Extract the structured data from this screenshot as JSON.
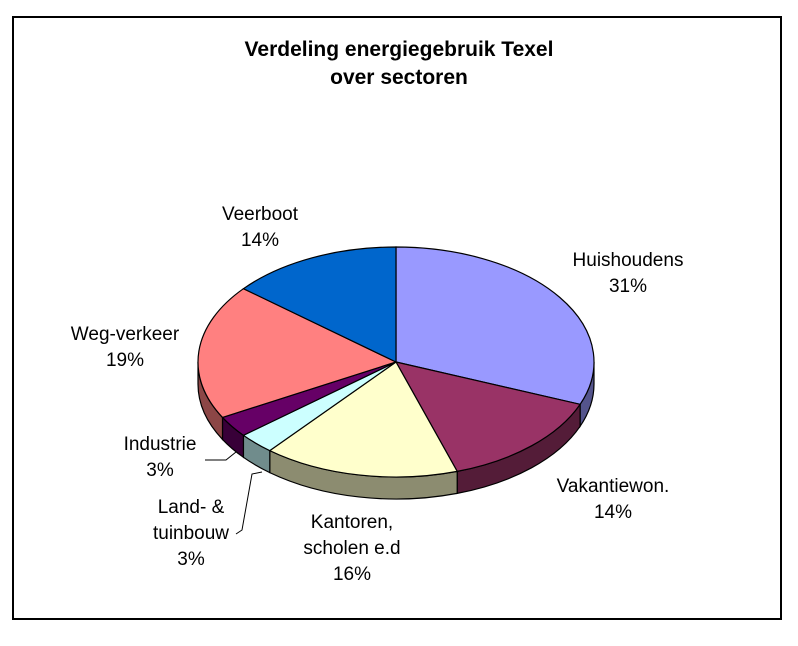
{
  "chart_data": {
    "type": "pie",
    "title": [
      "Verdeling energiegebruik Texel",
      "over sectoren"
    ],
    "slices": [
      {
        "name": "Huishoudens",
        "lines": [
          "Huishoudens"
        ],
        "value": 31,
        "label": "31%",
        "color": "#9999FF"
      },
      {
        "name": "Vakantiewon.",
        "lines": [
          "Vakantiewon."
        ],
        "value": 14,
        "label": "14%",
        "color": "#993366"
      },
      {
        "name": "Kantoren, scholen e.d",
        "lines": [
          "Kantoren,",
          "scholen e.d"
        ],
        "value": 16,
        "label": "16%",
        "color": "#FFFFCC"
      },
      {
        "name": "Land- & tuinbouw",
        "lines": [
          "Land- &",
          "tuinbouw"
        ],
        "value": 3,
        "label": "3%",
        "color": "#CCFFFF"
      },
      {
        "name": "Industrie",
        "lines": [
          "Industrie"
        ],
        "value": 3,
        "label": "3%",
        "color": "#660066"
      },
      {
        "name": "Weg-verkeer",
        "lines": [
          "Weg-verkeer"
        ],
        "value": 19,
        "label": "19%",
        "color": "#FF8080"
      },
      {
        "name": "Veerboot",
        "lines": [
          "Veerboot"
        ],
        "value": 14,
        "label": "14%",
        "color": "#0066CC"
      }
    ],
    "legend": "none",
    "style": "3d-pie"
  }
}
